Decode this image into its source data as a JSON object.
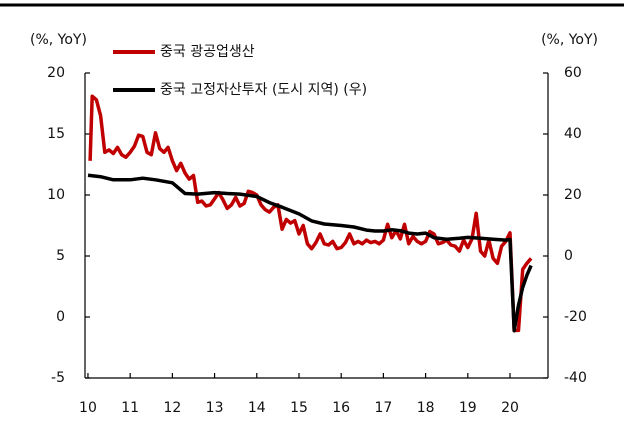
{
  "chart_data": {
    "type": "line",
    "y_label": "(%, YoY)",
    "y2_label": "(%, YoY)",
    "xlim": [
      9.93,
      20.9
    ],
    "xticks": [
      10,
      11,
      12,
      13,
      14,
      15,
      16,
      17,
      18,
      19,
      20
    ],
    "ylim": [
      -5,
      20
    ],
    "yticks": [
      -5,
      0,
      5,
      10,
      15,
      20
    ],
    "y2lim": [
      -40,
      60
    ],
    "y2ticks": [
      -40,
      -20,
      0,
      20,
      40,
      60
    ],
    "series": [
      {
        "name": "중국 광공업생산",
        "color": "#c00000",
        "x": [
          10.05,
          10.1,
          10.2,
          10.3,
          10.4,
          10.5,
          10.6,
          10.7,
          10.8,
          10.9,
          11.0,
          11.1,
          11.2,
          11.3,
          11.4,
          11.5,
          11.6,
          11.7,
          11.8,
          11.9,
          12.0,
          12.1,
          12.2,
          12.3,
          12.4,
          12.5,
          12.6,
          12.7,
          12.8,
          12.9,
          13.0,
          13.1,
          13.2,
          13.3,
          13.4,
          13.5,
          13.6,
          13.7,
          13.8,
          13.9,
          14.0,
          14.1,
          14.2,
          14.3,
          14.4,
          14.5,
          14.6,
          14.7,
          14.8,
          14.9,
          15.0,
          15.1,
          15.2,
          15.3,
          15.4,
          15.5,
          15.6,
          15.7,
          15.8,
          15.9,
          16.0,
          16.1,
          16.2,
          16.3,
          16.4,
          16.5,
          16.6,
          16.7,
          16.8,
          16.9,
          17.0,
          17.1,
          17.2,
          17.3,
          17.4,
          17.5,
          17.6,
          17.7,
          17.8,
          17.9,
          18.0,
          18.1,
          18.2,
          18.3,
          18.4,
          18.5,
          18.6,
          18.7,
          18.8,
          18.9,
          19.0,
          19.1,
          19.2,
          19.3,
          19.4,
          19.5,
          19.6,
          19.7,
          19.8,
          19.9,
          20.0,
          20.1,
          20.2,
          20.3,
          20.4,
          20.5
        ],
        "values": [
          12.8,
          18.1,
          17.8,
          16.5,
          13.5,
          13.7,
          13.4,
          13.9,
          13.3,
          13.1,
          13.5,
          14.0,
          14.9,
          14.8,
          13.5,
          13.3,
          15.1,
          13.8,
          13.5,
          13.9,
          12.8,
          12.0,
          12.6,
          11.8,
          11.3,
          11.6,
          9.4,
          9.5,
          9.1,
          9.2,
          9.7,
          10.2,
          9.6,
          8.9,
          9.2,
          9.8,
          9.1,
          9.3,
          10.3,
          10.2,
          10.0,
          9.2,
          8.8,
          8.6,
          9.0,
          9.2,
          7.2,
          8.0,
          7.7,
          7.9,
          6.8,
          7.5,
          6.0,
          5.6,
          6.1,
          6.8,
          6.0,
          5.9,
          6.2,
          5.6,
          5.7,
          6.1,
          6.8,
          6.0,
          6.2,
          6.0,
          6.3,
          6.1,
          6.2,
          6.0,
          6.3,
          7.6,
          6.5,
          7.1,
          6.4,
          7.6,
          6.0,
          6.6,
          6.2,
          6.0,
          6.2,
          7.0,
          6.8,
          6.0,
          6.1,
          6.3,
          5.9,
          5.8,
          5.4,
          6.3,
          5.7,
          6.4,
          8.5,
          5.4,
          5.0,
          6.3,
          4.8,
          4.4,
          5.8,
          6.2,
          6.9,
          -1.1,
          -1.1,
          3.9,
          4.4,
          4.8
        ]
      },
      {
        "name": "중국 고정자산투자 (도시 지역) (우)",
        "color": "#000000",
        "axis": "y2",
        "x": [
          10.0,
          10.3,
          10.6,
          11.0,
          11.3,
          11.6,
          12.0,
          12.3,
          12.6,
          13.0,
          13.3,
          13.6,
          14.0,
          14.3,
          14.6,
          15.0,
          15.3,
          15.6,
          16.0,
          16.3,
          16.6,
          16.8,
          17.0,
          17.2,
          17.4,
          17.6,
          17.8,
          18.0,
          18.2,
          18.5,
          18.8,
          19.0,
          19.3,
          19.6,
          19.9,
          20.0,
          20.1,
          20.2,
          20.3,
          20.4,
          20.5
        ],
        "values": [
          26.5,
          26,
          25,
          25,
          25.5,
          25,
          24,
          20.5,
          20.3,
          20.8,
          20.5,
          20.3,
          19.5,
          17.5,
          16,
          13.8,
          11.5,
          10.5,
          10.0,
          9.5,
          8.5,
          8.2,
          8.2,
          8.6,
          8.3,
          7.5,
          7.2,
          7.5,
          6.0,
          5.5,
          5.8,
          6.1,
          5.8,
          5.5,
          5.2,
          5.4,
          -24.5,
          -16.1,
          -10.3,
          -6.3,
          -3.1
        ]
      }
    ]
  }
}
